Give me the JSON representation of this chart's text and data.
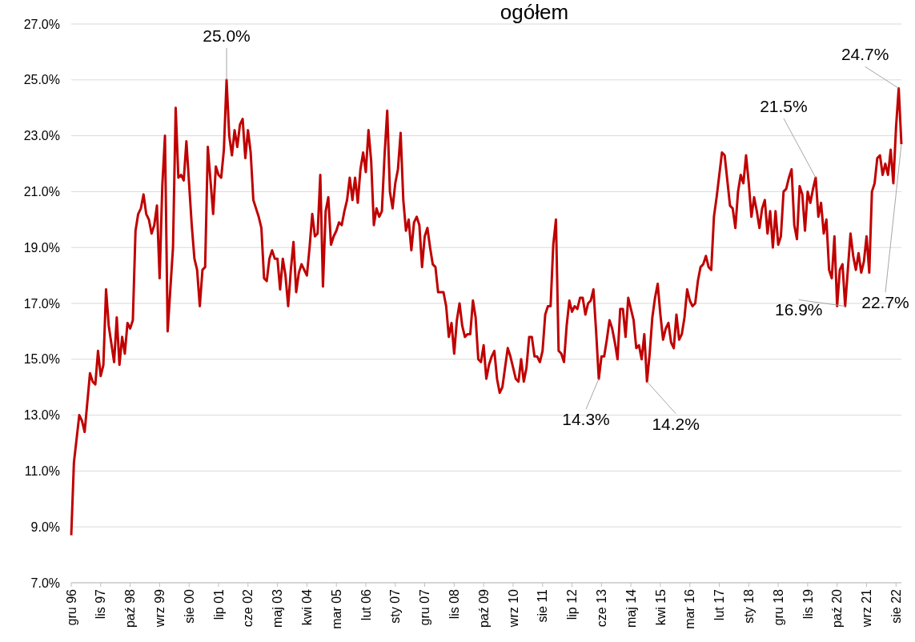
{
  "chart_data": {
    "type": "line",
    "title": "ogółem",
    "x": [
      "1996-12",
      "1997-01",
      "1997-03",
      "1997-04",
      "1997-05",
      "1997-07",
      "1997-08",
      "1997-09",
      "1997-10",
      "1997-11",
      "1997-12",
      "1998-01",
      "1998-02",
      "1998-04",
      "1998-05",
      "1998-06",
      "1998-07",
      "1998-08",
      "1998-09",
      "1998-10",
      "1998-11",
      "1998-12",
      "1999-01",
      "1999-02",
      "1999-03",
      "1999-04",
      "1999-05",
      "1999-06",
      "1999-07",
      "1999-08",
      "1999-09",
      "1999-10",
      "1999-11",
      "1999-12",
      "2000-02",
      "2000-03",
      "2000-04",
      "2000-05",
      "2000-06",
      "2000-07",
      "2000-09",
      "2000-10",
      "2000-11",
      "2000-12",
      "2001-01",
      "2001-02",
      "2001-03",
      "2001-05",
      "2001-06",
      "2001-07",
      "2001-08",
      "2001-09",
      "2001-10",
      "2001-11",
      "2001-12",
      "2002-01",
      "2002-02",
      "2002-03",
      "2002-04",
      "2002-05",
      "2002-06",
      "2002-07",
      "2002-08",
      "2002-09",
      "2002-10",
      "2002-11",
      "2002-12",
      "2003-01",
      "2003-02",
      "2003-03",
      "2003-04",
      "2003-05",
      "2003-06",
      "2003-07",
      "2003-08",
      "2003-09",
      "2003-10",
      "2003-11",
      "2003-12",
      "2004-01",
      "2004-02",
      "2004-03",
      "2004-04",
      "2004-05",
      "2004-06",
      "2004-07",
      "2004-08",
      "2004-09",
      "2004-10",
      "2004-11",
      "2004-12",
      "2005-01",
      "2005-02",
      "2005-03",
      "2005-04",
      "2005-05",
      "2005-06",
      "2005-07",
      "2005-08",
      "2005-09",
      "2005-10",
      "2005-11",
      "2005-12",
      "2006-01",
      "2006-02",
      "2006-03",
      "2006-04",
      "2006-05",
      "2006-06",
      "2006-07",
      "2006-08",
      "2006-09",
      "2006-10",
      "2006-11",
      "2006-12",
      "2007-01",
      "2007-02",
      "2007-03",
      "2007-04",
      "2007-05",
      "2007-06",
      "2007-07",
      "2007-08",
      "2007-09",
      "2007-10",
      "2007-11",
      "2007-12",
      "2008-01",
      "2008-02",
      "2008-03",
      "2008-04",
      "2008-05",
      "2008-06",
      "2008-07",
      "2008-08",
      "2008-09",
      "2008-10",
      "2008-11",
      "2008-12",
      "2009-01",
      "2009-02",
      "2009-03",
      "2009-04",
      "2009-05",
      "2009-06",
      "2009-07",
      "2009-08",
      "2009-09",
      "2009-10",
      "2009-11",
      "2009-12",
      "2010-01",
      "2010-02",
      "2010-03",
      "2010-04",
      "2010-05",
      "2010-07",
      "2010-08",
      "2010-09",
      "2010-10",
      "2010-11",
      "2010-12",
      "2011-01",
      "2011-02",
      "2011-03",
      "2011-04",
      "2011-05",
      "2011-06",
      "2011-07",
      "2011-08",
      "2011-09",
      "2011-10",
      "2011-11",
      "2011-12",
      "2012-01",
      "2012-02",
      "2012-03",
      "2012-04",
      "2012-05",
      "2012-06",
      "2012-07",
      "2012-08",
      "2012-09",
      "2012-10",
      "2012-11",
      "2012-12",
      "2013-01",
      "2013-02",
      "2013-03",
      "2013-04",
      "2013-05",
      "2013-06",
      "2013-07",
      "2013-08",
      "2013-09",
      "2013-10",
      "2013-11",
      "2013-12",
      "2014-01",
      "2014-02",
      "2014-03",
      "2014-04",
      "2014-05",
      "2014-06",
      "2014-07",
      "2014-08",
      "2014-09",
      "2014-10",
      "2014-11",
      "2014-12",
      "2015-01",
      "2015-02",
      "2015-03",
      "2015-04",
      "2015-05",
      "2015-06",
      "2015-07",
      "2015-08",
      "2015-09",
      "2015-10",
      "2015-11",
      "2015-12",
      "2016-01",
      "2016-02",
      "2016-03",
      "2016-04",
      "2016-05",
      "2016-06",
      "2016-07",
      "2016-08",
      "2016-09",
      "2016-10",
      "2016-11",
      "2016-12",
      "2017-01",
      "2017-02",
      "2017-03",
      "2017-04",
      "2017-05",
      "2017-06",
      "2017-07",
      "2017-08",
      "2017-09",
      "2017-10",
      "2017-11",
      "2017-12",
      "2018-01",
      "2018-02",
      "2018-03",
      "2018-04",
      "2018-05",
      "2018-06",
      "2018-07",
      "2018-08",
      "2018-09",
      "2018-10",
      "2018-11",
      "2018-12",
      "2019-01",
      "2019-02",
      "2019-03",
      "2019-04",
      "2019-05",
      "2019-06",
      "2019-07",
      "2019-08",
      "2019-09",
      "2019-10",
      "2019-11",
      "2019-12",
      "2020-01",
      "2020-02",
      "2020-03",
      "2020-04",
      "2020-05",
      "2020-06",
      "2020-07",
      "2020-08",
      "2020-09",
      "2020-10",
      "2020-11",
      "2020-12",
      "2021-01",
      "2021-02",
      "2021-03",
      "2021-04",
      "2021-05",
      "2021-06",
      "2021-07",
      "2021-08",
      "2021-09",
      "2021-10",
      "2021-11",
      "2021-12",
      "2022-01",
      "2022-02",
      "2022-03",
      "2022-04",
      "2022-05",
      "2022-06",
      "2022-07",
      "2022-08",
      "2022-09",
      "2022-10"
    ],
    "series": [
      {
        "color": "#c00000",
        "values": [
          8.7,
          11.3,
          13.0,
          12.8,
          12.4,
          14.5,
          14.2,
          14.1,
          15.3,
          14.4,
          14.8,
          17.5,
          16.2,
          14.9,
          16.5,
          14.8,
          15.8,
          15.2,
          16.3,
          16.1,
          16.4,
          19.6,
          20.2,
          20.4,
          20.9,
          20.2,
          20.0,
          19.5,
          19.8,
          20.5,
          17.9,
          21.2,
          23.0,
          16.0,
          19.0,
          24.0,
          21.5,
          21.6,
          21.4,
          22.8,
          19.8,
          18.6,
          18.2,
          16.9,
          18.2,
          18.3,
          22.6,
          20.2,
          21.9,
          21.6,
          21.5,
          22.5,
          25.0,
          23.0,
          22.3,
          23.2,
          22.6,
          23.4,
          23.6,
          22.2,
          23.2,
          22.4,
          20.7,
          20.4,
          20.1,
          19.7,
          17.9,
          17.8,
          18.6,
          18.9,
          18.6,
          18.6,
          17.5,
          18.6,
          18.0,
          16.9,
          18.2,
          19.2,
          17.4,
          18.1,
          18.4,
          18.2,
          18.0,
          19.0,
          20.2,
          19.4,
          19.5,
          21.6,
          17.6,
          20.3,
          20.8,
          19.1,
          19.4,
          19.6,
          19.9,
          19.8,
          20.3,
          20.7,
          21.5,
          20.7,
          21.5,
          20.6,
          21.8,
          22.4,
          21.7,
          23.2,
          22.1,
          19.8,
          20.4,
          20.1,
          20.3,
          22.3,
          23.9,
          21.0,
          20.4,
          21.3,
          21.8,
          23.1,
          20.7,
          19.6,
          20.0,
          18.9,
          19.9,
          20.1,
          19.8,
          18.3,
          19.4,
          19.7,
          19.0,
          18.4,
          18.3,
          17.4,
          17.4,
          17.4,
          16.9,
          15.8,
          16.3,
          15.2,
          16.4,
          17.0,
          16.2,
          15.8,
          15.9,
          15.9,
          17.1,
          16.5,
          15.0,
          14.9,
          15.5,
          14.3,
          14.8,
          15.1,
          15.3,
          14.3,
          13.8,
          14.0,
          15.4,
          15.1,
          14.7,
          14.3,
          14.2,
          15.0,
          14.2,
          14.7,
          15.8,
          15.8,
          15.1,
          15.1,
          14.9,
          15.3,
          16.6,
          16.9,
          16.9,
          19.1,
          20.0,
          15.3,
          15.2,
          14.9,
          16.2,
          17.1,
          16.7,
          16.9,
          16.8,
          17.2,
          17.2,
          16.6,
          17.0,
          17.1,
          17.5,
          16.0,
          14.3,
          15.1,
          15.1,
          15.7,
          16.4,
          16.1,
          15.6,
          15.0,
          16.8,
          16.8,
          15.8,
          17.2,
          16.8,
          16.4,
          15.4,
          15.5,
          15.0,
          15.9,
          14.2,
          15.2,
          16.5,
          17.2,
          17.7,
          16.6,
          15.7,
          16.1,
          16.3,
          15.6,
          15.4,
          16.6,
          15.7,
          15.9,
          16.5,
          17.5,
          17.1,
          16.9,
          17.0,
          17.8,
          18.3,
          18.4,
          18.7,
          18.3,
          18.2,
          20.1,
          20.8,
          21.6,
          22.4,
          22.3,
          21.4,
          20.5,
          20.4,
          19.7,
          21.0,
          21.6,
          21.3,
          22.3,
          21.3,
          20.1,
          20.8,
          20.3,
          19.7,
          20.4,
          20.7,
          19.5,
          20.3,
          19.0,
          20.3,
          19.1,
          19.4,
          21.0,
          21.1,
          21.5,
          21.8,
          19.8,
          19.3,
          21.2,
          20.9,
          19.6,
          21.0,
          20.6,
          21.1,
          21.5,
          20.1,
          20.6,
          19.5,
          20.0,
          18.2,
          17.9,
          19.4,
          16.9,
          18.2,
          18.4,
          16.9,
          18.2,
          19.5,
          18.7,
          18.2,
          18.8,
          18.1,
          18.5,
          19.4,
          18.1,
          21.0,
          21.3,
          22.2,
          22.3,
          21.6,
          22.0,
          21.6,
          22.5,
          21.3,
          23.3,
          24.7,
          22.7
        ]
      }
    ],
    "xlim": [
      "1996-12",
      "2022-10"
    ],
    "xticks": [
      {
        "value": "1996-12",
        "label": "gru 96"
      },
      {
        "value": "1997-11",
        "label": "lis 97"
      },
      {
        "value": "1998-10",
        "label": "paź 98"
      },
      {
        "value": "1999-09",
        "label": "wrz 99"
      },
      {
        "value": "2000-08",
        "label": "sie 00"
      },
      {
        "value": "2001-07",
        "label": "lip 01"
      },
      {
        "value": "2002-06",
        "label": "cze 02"
      },
      {
        "value": "2003-05",
        "label": "maj 03"
      },
      {
        "value": "2004-04",
        "label": "kwi 04"
      },
      {
        "value": "2005-03",
        "label": "mar 05"
      },
      {
        "value": "2006-02",
        "label": "lut 06"
      },
      {
        "value": "2007-01",
        "label": "sty 07"
      },
      {
        "value": "2007-12",
        "label": "gru 07"
      },
      {
        "value": "2008-11",
        "label": "lis 08"
      },
      {
        "value": "2009-10",
        "label": "paź 09"
      },
      {
        "value": "2010-09",
        "label": "wrz 10"
      },
      {
        "value": "2011-08",
        "label": "sie 11"
      },
      {
        "value": "2012-07",
        "label": "lip 12"
      },
      {
        "value": "2013-06",
        "label": "cze 13"
      },
      {
        "value": "2014-05",
        "label": "maj 14"
      },
      {
        "value": "2015-04",
        "label": "kwi 15"
      },
      {
        "value": "2016-03",
        "label": "mar 16"
      },
      {
        "value": "2017-02",
        "label": "lut 17"
      },
      {
        "value": "2018-01",
        "label": "sty 18"
      },
      {
        "value": "2018-12",
        "label": "gru 18"
      },
      {
        "value": "2019-11",
        "label": "lis 19"
      },
      {
        "value": "2020-10",
        "label": "paź 20"
      },
      {
        "value": "2021-09",
        "label": "wrz 21"
      },
      {
        "value": "2022-08",
        "label": "sie 22"
      }
    ],
    "ylim": [
      7,
      27
    ],
    "yticks": [
      {
        "value": 7,
        "label": "7.0%"
      },
      {
        "value": 9,
        "label": "9.0%"
      },
      {
        "value": 11,
        "label": "11.0%"
      },
      {
        "value": 13,
        "label": "13.0%"
      },
      {
        "value": 15,
        "label": "15.0%"
      },
      {
        "value": 17,
        "label": "17.0%"
      },
      {
        "value": 19,
        "label": "19.0%"
      },
      {
        "value": 21,
        "label": "21.0%"
      },
      {
        "value": 23,
        "label": "23.0%"
      },
      {
        "value": 25,
        "label": "25.0%"
      },
      {
        "value": 27,
        "label": "27.0%"
      }
    ],
    "grid": "y",
    "annotations": [
      {
        "text": "25.0%",
        "x": "2001-10",
        "y": 25.0
      },
      {
        "text": "24.7%",
        "x": "2022-09",
        "y": 24.7
      },
      {
        "text": "21.5%",
        "x": "2020-02",
        "y": 21.5
      },
      {
        "text": "22.7%",
        "x": "2022-10",
        "y": 22.7
      },
      {
        "text": "16.9%",
        "x": "2021-01",
        "y": 16.9
      },
      {
        "text": "14.3%",
        "x": "2013-05",
        "y": 14.3
      },
      {
        "text": "14.2%",
        "x": "2014-11",
        "y": 14.2
      }
    ]
  }
}
